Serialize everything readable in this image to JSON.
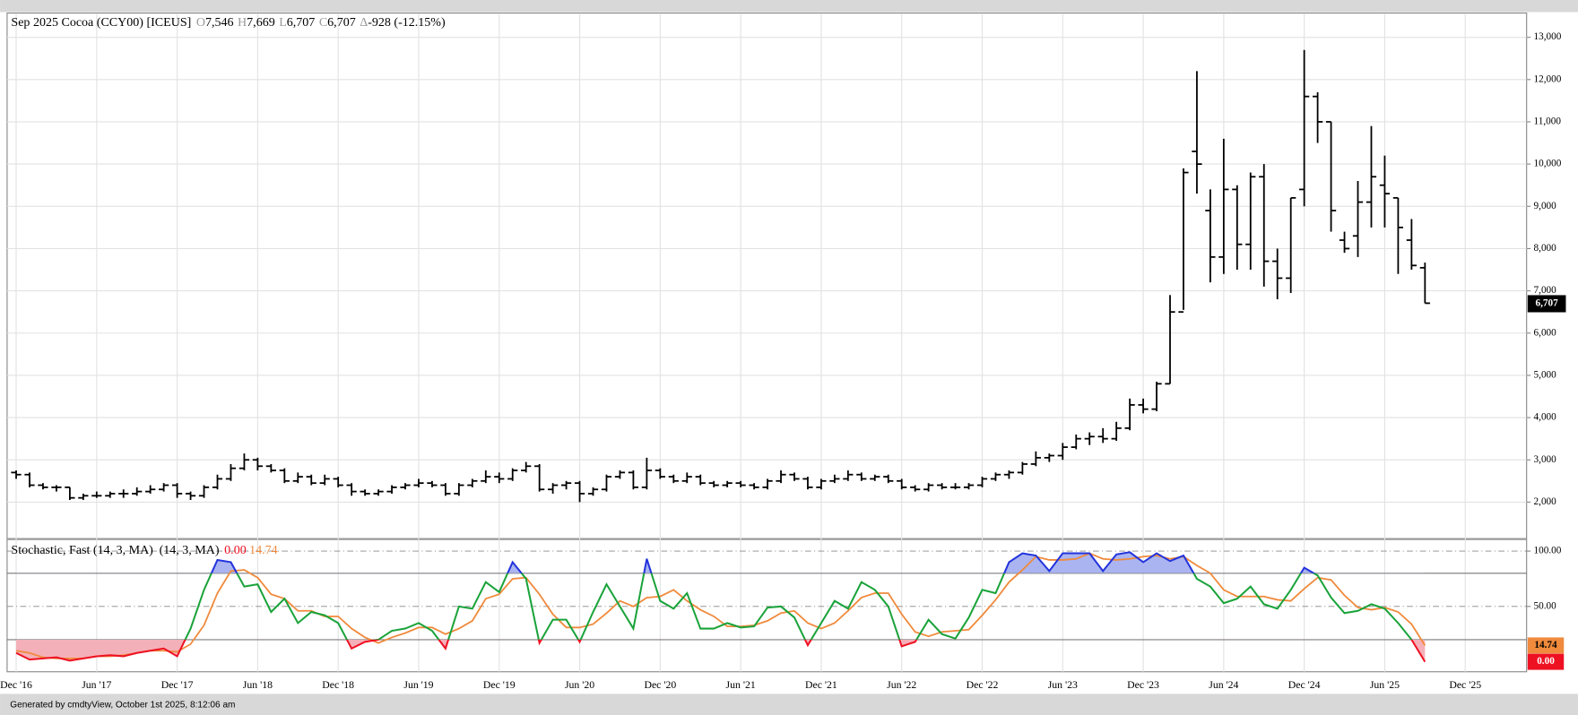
{
  "header": {
    "title": "Sep 2025 Cocoa (CCY00) [ICEUS]",
    "quote": [
      {
        "label": "O",
        "value": "7,546"
      },
      {
        "label": "H",
        "value": "7,669"
      },
      {
        "label": "L",
        "value": "6,707"
      },
      {
        "label": "C",
        "value": "6,707"
      },
      {
        "label": "Δ",
        "value": "-928 (-12.15%)"
      }
    ]
  },
  "footer": "Generated by cmdtyView, October 1st 2025, 8:12:06 am",
  "chart_data": {
    "type": "ohlc",
    "color": "#000000",
    "x": [
      "2016-12",
      "2017-01",
      "2017-02",
      "2017-03",
      "2017-04",
      "2017-05",
      "2017-06",
      "2017-07",
      "2017-08",
      "2017-09",
      "2017-10",
      "2017-11",
      "2017-12",
      "2018-01",
      "2018-02",
      "2018-03",
      "2018-04",
      "2018-05",
      "2018-06",
      "2018-07",
      "2018-08",
      "2018-09",
      "2018-10",
      "2018-11",
      "2018-12",
      "2019-01",
      "2019-02",
      "2019-03",
      "2019-04",
      "2019-05",
      "2019-06",
      "2019-07",
      "2019-08",
      "2019-09",
      "2019-10",
      "2019-11",
      "2019-12",
      "2020-01",
      "2020-02",
      "2020-03",
      "2020-04",
      "2020-05",
      "2020-06",
      "2020-07",
      "2020-08",
      "2020-09",
      "2020-10",
      "2020-11",
      "2020-12",
      "2021-01",
      "2021-02",
      "2021-03",
      "2021-04",
      "2021-05",
      "2021-06",
      "2021-07",
      "2021-08",
      "2021-09",
      "2021-10",
      "2021-11",
      "2021-12",
      "2022-01",
      "2022-02",
      "2022-03",
      "2022-04",
      "2022-05",
      "2022-06",
      "2022-07",
      "2022-08",
      "2022-09",
      "2022-10",
      "2022-11",
      "2022-12",
      "2023-01",
      "2023-02",
      "2023-03",
      "2023-04",
      "2023-05",
      "2023-06",
      "2023-07",
      "2023-08",
      "2023-09",
      "2023-10",
      "2023-11",
      "2023-12",
      "2024-01",
      "2024-02",
      "2024-03",
      "2024-04",
      "2024-05",
      "2024-06",
      "2024-07",
      "2024-08",
      "2024-09",
      "2024-10",
      "2024-11",
      "2024-12",
      "2025-01",
      "2025-02",
      "2025-03",
      "2025-04",
      "2025-05",
      "2025-06",
      "2025-07",
      "2025-08",
      "2025-09"
    ],
    "ohlc": [
      [
        2700,
        2750,
        2550,
        2650
      ],
      [
        2650,
        2700,
        2350,
        2400
      ],
      [
        2400,
        2450,
        2300,
        2350
      ],
      [
        2350,
        2400,
        2250,
        2350
      ],
      [
        2350,
        2350,
        2050,
        2100
      ],
      [
        2100,
        2200,
        2050,
        2150
      ],
      [
        2150,
        2250,
        2100,
        2150
      ],
      [
        2150,
        2250,
        2100,
        2200
      ],
      [
        2200,
        2300,
        2100,
        2200
      ],
      [
        2200,
        2350,
        2150,
        2250
      ],
      [
        2250,
        2400,
        2200,
        2300
      ],
      [
        2300,
        2450,
        2250,
        2400
      ],
      [
        2400,
        2450,
        2100,
        2200
      ],
      [
        2200,
        2250,
        2050,
        2150
      ],
      [
        2150,
        2400,
        2100,
        2350
      ],
      [
        2350,
        2650,
        2300,
        2550
      ],
      [
        2550,
        2900,
        2500,
        2800
      ],
      [
        2800,
        3150,
        2750,
        3000
      ],
      [
        3000,
        3050,
        2750,
        2850
      ],
      [
        2850,
        2900,
        2700,
        2750
      ],
      [
        2750,
        2800,
        2450,
        2500
      ],
      [
        2500,
        2700,
        2450,
        2600
      ],
      [
        2600,
        2650,
        2400,
        2450
      ],
      [
        2450,
        2650,
        2400,
        2550
      ],
      [
        2550,
        2600,
        2350,
        2400
      ],
      [
        2400,
        2450,
        2150,
        2250
      ],
      [
        2250,
        2300,
        2150,
        2200
      ],
      [
        2200,
        2300,
        2150,
        2250
      ],
      [
        2250,
        2400,
        2200,
        2350
      ],
      [
        2350,
        2450,
        2300,
        2400
      ],
      [
        2400,
        2550,
        2350,
        2450
      ],
      [
        2450,
        2500,
        2350,
        2400
      ],
      [
        2400,
        2450,
        2150,
        2200
      ],
      [
        2200,
        2450,
        2150,
        2400
      ],
      [
        2400,
        2550,
        2350,
        2500
      ],
      [
        2500,
        2750,
        2450,
        2600
      ],
      [
        2600,
        2700,
        2450,
        2550
      ],
      [
        2550,
        2800,
        2500,
        2750
      ],
      [
        2750,
        2950,
        2700,
        2850
      ],
      [
        2850,
        2900,
        2250,
        2300
      ],
      [
        2300,
        2450,
        2200,
        2400
      ],
      [
        2400,
        2500,
        2300,
        2450
      ],
      [
        2450,
        2500,
        2000,
        2200
      ],
      [
        2200,
        2350,
        2150,
        2300
      ],
      [
        2300,
        2650,
        2250,
        2600
      ],
      [
        2600,
        2750,
        2550,
        2700
      ],
      [
        2700,
        2750,
        2300,
        2350
      ],
      [
        2350,
        3050,
        2300,
        2750
      ],
      [
        2750,
        2800,
        2550,
        2600
      ],
      [
        2600,
        2650,
        2450,
        2500
      ],
      [
        2500,
        2700,
        2450,
        2600
      ],
      [
        2600,
        2650,
        2400,
        2450
      ],
      [
        2450,
        2500,
        2350,
        2400
      ],
      [
        2400,
        2500,
        2350,
        2450
      ],
      [
        2450,
        2500,
        2350,
        2400
      ],
      [
        2400,
        2450,
        2300,
        2350
      ],
      [
        2350,
        2550,
        2300,
        2500
      ],
      [
        2500,
        2750,
        2450,
        2650
      ],
      [
        2650,
        2700,
        2500,
        2550
      ],
      [
        2550,
        2600,
        2300,
        2350
      ],
      [
        2350,
        2550,
        2300,
        2500
      ],
      [
        2500,
        2650,
        2450,
        2550
      ],
      [
        2550,
        2750,
        2500,
        2650
      ],
      [
        2650,
        2700,
        2500,
        2550
      ],
      [
        2550,
        2650,
        2500,
        2600
      ],
      [
        2600,
        2650,
        2450,
        2500
      ],
      [
        2500,
        2550,
        2300,
        2350
      ],
      [
        2350,
        2400,
        2250,
        2300
      ],
      [
        2300,
        2450,
        2250,
        2400
      ],
      [
        2400,
        2450,
        2300,
        2350
      ],
      [
        2350,
        2450,
        2300,
        2350
      ],
      [
        2350,
        2450,
        2300,
        2400
      ],
      [
        2400,
        2600,
        2350,
        2550
      ],
      [
        2550,
        2700,
        2500,
        2650
      ],
      [
        2650,
        2750,
        2550,
        2700
      ],
      [
        2700,
        2950,
        2650,
        2900
      ],
      [
        2900,
        3200,
        2850,
        3050
      ],
      [
        3050,
        3150,
        2950,
        3100
      ],
      [
        3100,
        3400,
        3000,
        3300
      ],
      [
        3300,
        3600,
        3250,
        3500
      ],
      [
        3500,
        3650,
        3350,
        3550
      ],
      [
        3550,
        3750,
        3400,
        3500
      ],
      [
        3500,
        3900,
        3450,
        3750
      ],
      [
        3750,
        4450,
        3700,
        4300
      ],
      [
        4300,
        4450,
        4100,
        4200
      ],
      [
        4200,
        4850,
        4150,
        4800
      ],
      [
        4800,
        6900,
        4800,
        6500
      ],
      [
        6500,
        9900,
        6550,
        9800
      ],
      [
        10300,
        12200,
        9300,
        10000
      ],
      [
        8900,
        9400,
        7200,
        7800
      ],
      [
        7800,
        10600,
        7400,
        9400
      ],
      [
        9400,
        9500,
        7500,
        8100
      ],
      [
        8100,
        9800,
        7500,
        9700
      ],
      [
        9700,
        10000,
        7100,
        7700
      ],
      [
        7700,
        8000,
        6800,
        7300
      ],
      [
        7300,
        9200,
        6950,
        9200
      ],
      [
        9400,
        12700,
        9000,
        11600
      ],
      [
        11600,
        11700,
        10500,
        11000
      ],
      [
        11000,
        11000,
        8400,
        8900
      ],
      [
        8200,
        8400,
        7900,
        8000
      ],
      [
        8300,
        9600,
        7800,
        9100
      ],
      [
        9100,
        10900,
        8500,
        9700
      ],
      [
        9500,
        10200,
        8500,
        9300
      ],
      [
        9200,
        9200,
        7400,
        8500
      ],
      [
        8200,
        8700,
        7500,
        7600
      ],
      [
        7546,
        7669,
        6707,
        6707
      ]
    ],
    "last_label": "6,707",
    "ylim": [
      1150,
      13550
    ],
    "yticks": [
      {
        "value": 2000,
        "label": "2,000"
      },
      {
        "value": 3000,
        "label": "3,000"
      },
      {
        "value": 4000,
        "label": "4,000"
      },
      {
        "value": 5000,
        "label": "5,000"
      },
      {
        "value": 6000,
        "label": "6,000"
      },
      {
        "value": 7000,
        "label": "7,000"
      },
      {
        "value": 8000,
        "label": "8,000"
      },
      {
        "value": 9000,
        "label": "9,000"
      },
      {
        "value": 10000,
        "label": "10,000"
      },
      {
        "value": 11000,
        "label": "11,000"
      },
      {
        "value": 12000,
        "label": "12,000"
      },
      {
        "value": 13000,
        "label": "13,000"
      }
    ],
    "xticks": [
      {
        "value": "2016-12",
        "label": "Dec '16"
      },
      {
        "value": "2017-06",
        "label": "Jun '17"
      },
      {
        "value": "2017-12",
        "label": "Dec '17"
      },
      {
        "value": "2018-06",
        "label": "Jun '18"
      },
      {
        "value": "2018-12",
        "label": "Dec '18"
      },
      {
        "value": "2019-06",
        "label": "Jun '19"
      },
      {
        "value": "2019-12",
        "label": "Dec '19"
      },
      {
        "value": "2020-06",
        "label": "Jun '20"
      },
      {
        "value": "2020-12",
        "label": "Dec '20"
      },
      {
        "value": "2021-06",
        "label": "Jun '21"
      },
      {
        "value": "2021-12",
        "label": "Dec '21"
      },
      {
        "value": "2022-06",
        "label": "Jun '22"
      },
      {
        "value": "2022-12",
        "label": "Dec '22"
      },
      {
        "value": "2023-06",
        "label": "Jun '23"
      },
      {
        "value": "2023-12",
        "label": "Dec '23"
      },
      {
        "value": "2024-06",
        "label": "Jun '24"
      },
      {
        "value": "2024-12",
        "label": "Dec '24"
      },
      {
        "value": "2025-06",
        "label": "Jun '25"
      },
      {
        "value": "2025-12",
        "label": "Dec '25"
      }
    ],
    "grid": true,
    "indicator": {
      "type": "line",
      "title": "Stochastic, Fast (14, 3, MA)",
      "params": "(14, 3, MA)",
      "ylim": [
        -9,
        110
      ],
      "yticks": [
        {
          "value": 100,
          "label": "100.00"
        },
        {
          "value": 50,
          "label": "50.00"
        }
      ],
      "levels": [
        20,
        80
      ],
      "over_fill": "#aab4f0",
      "under_fill": "#f4b0b8",
      "series": [
        {
          "color": "#1aa33a",
          "over_color": "#2233dd",
          "under_color": "#ee1122",
          "last_label": "0.00",
          "values": [
            8,
            2,
            3,
            4,
            1,
            3,
            5,
            6,
            5,
            8,
            10,
            12,
            5,
            30,
            65,
            92,
            90,
            68,
            70,
            45,
            57,
            35,
            45,
            42,
            35,
            12,
            18,
            20,
            28,
            30,
            35,
            28,
            12,
            50,
            48,
            72,
            63,
            90,
            75,
            17,
            38,
            38,
            18,
            45,
            70,
            50,
            30,
            93,
            55,
            48,
            62,
            30,
            30,
            35,
            31,
            32,
            49,
            50,
            40,
            15,
            35,
            55,
            48,
            72,
            65,
            50,
            14,
            18,
            38,
            25,
            21,
            40,
            65,
            62,
            90,
            98,
            96,
            82,
            98,
            98,
            98,
            82,
            97,
            99,
            90,
            98,
            91,
            96,
            75,
            68,
            53,
            57,
            68,
            52,
            48,
            65,
            85,
            78,
            58,
            44,
            46,
            52,
            48,
            35,
            20,
            0
          ]
        },
        {
          "color": "#f08a3c",
          "last_label": "14.74",
          "values": [
            10,
            8,
            4,
            3,
            3,
            3,
            5,
            5,
            6,
            8,
            10,
            10,
            9,
            16,
            33,
            62,
            82,
            83,
            76,
            61,
            57,
            46,
            46,
            41,
            41,
            30,
            22,
            17,
            22,
            26,
            31,
            31,
            25,
            30,
            37,
            57,
            61,
            75,
            76,
            61,
            43,
            31,
            31,
            34,
            44,
            55,
            50,
            58,
            59,
            65,
            55,
            47,
            41,
            32,
            32,
            33,
            37,
            44,
            46,
            35,
            30,
            35,
            46,
            58,
            62,
            62,
            43,
            27,
            23,
            27,
            28,
            29,
            42,
            56,
            72,
            83,
            95,
            92,
            92,
            93,
            98,
            93,
            92,
            93,
            95,
            96,
            93,
            95,
            87,
            80,
            65,
            59,
            59,
            59,
            56,
            55,
            66,
            76,
            74,
            60,
            49,
            47,
            49,
            45,
            34,
            14.74
          ]
        }
      ]
    }
  }
}
